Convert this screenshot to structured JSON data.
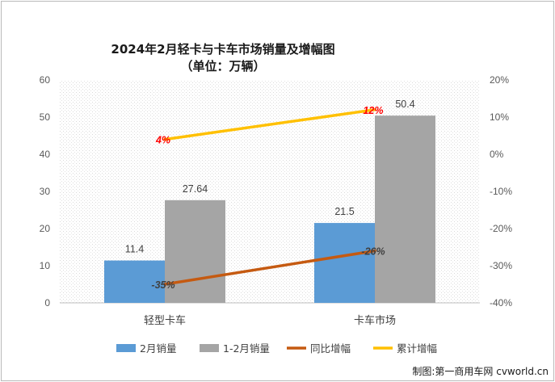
{
  "chart_data": {
    "type": "bar",
    "title": "2024年2月轻卡与卡车市场销量及增幅图",
    "subtitle": "（单位：万辆）",
    "categories": [
      "轻型卡车",
      "卡车市场"
    ],
    "series": [
      {
        "name": "2月销量",
        "type": "bar",
        "axis": "left",
        "values": [
          11.4,
          21.5
        ],
        "labels": [
          "11.4",
          "21.5"
        ],
        "color": "#5b9bd5"
      },
      {
        "name": "1-2月销量",
        "type": "bar",
        "axis": "left",
        "values": [
          27.64,
          50.4
        ],
        "labels": [
          "27.64",
          "50.4"
        ],
        "color": "#a5a5a5"
      },
      {
        "name": "同比增幅",
        "type": "line",
        "axis": "right",
        "values": [
          -35,
          -26
        ],
        "labels": [
          "-35%",
          "-26%"
        ],
        "color": "#c55a11",
        "label_color": "#404040"
      },
      {
        "name": "累计增幅",
        "type": "line",
        "axis": "right",
        "values": [
          4,
          12
        ],
        "labels": [
          "4%",
          "12%"
        ],
        "color": "#ffc000",
        "label_color": "#ff0000"
      }
    ],
    "y_left": {
      "min": 0,
      "max": 60,
      "ticks": [
        "0",
        "10",
        "20",
        "30",
        "40",
        "50",
        "60"
      ]
    },
    "y_right": {
      "min": -40,
      "max": 20,
      "ticks": [
        "-40%",
        "-30%",
        "-20%",
        "-10%",
        "0%",
        "10%",
        "20%"
      ]
    },
    "legend_position": "bottom",
    "source": "制图:第一商用车网 cvworld.cn"
  }
}
